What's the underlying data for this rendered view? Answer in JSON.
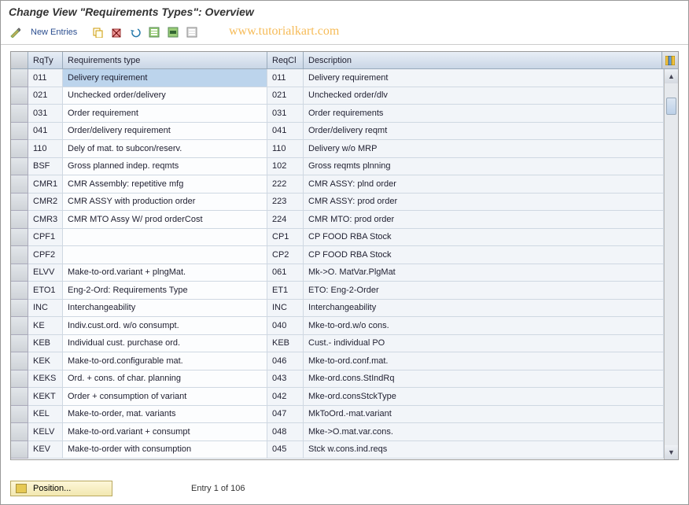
{
  "title": "Change View \"Requirements Types\": Overview",
  "toolbar": {
    "new_entries": "New Entries"
  },
  "watermark": "www.tutorialkart.com",
  "columns": {
    "rqty": "RqTy",
    "type": "Requirements type",
    "reqcl": "ReqCl",
    "desc": "Description"
  },
  "rows": [
    {
      "rqty": "011",
      "type": "Delivery requirement",
      "reqcl": "011",
      "desc": "Delivery requirement",
      "highlight": true
    },
    {
      "rqty": "021",
      "type": "Unchecked order/delivery",
      "reqcl": "021",
      "desc": "Unchecked order/dlv"
    },
    {
      "rqty": "031",
      "type": "Order requirement",
      "reqcl": "031",
      "desc": "Order requirements"
    },
    {
      "rqty": "041",
      "type": "Order/delivery requirement",
      "reqcl": "041",
      "desc": "Order/delivery reqmt"
    },
    {
      "rqty": "110",
      "type": "Dely of mat. to subcon/reserv.",
      "reqcl": "110",
      "desc": "Delivery w/o MRP"
    },
    {
      "rqty": "BSF",
      "type": "Gross planned indep. reqmts",
      "reqcl": "102",
      "desc": "Gross reqmts plnning"
    },
    {
      "rqty": "CMR1",
      "type": "CMR Assembly: repetitive mfg",
      "reqcl": "222",
      "desc": "CMR ASSY: plnd order"
    },
    {
      "rqty": "CMR2",
      "type": "CMR ASSY with production order",
      "reqcl": "223",
      "desc": "CMR ASSY: prod order"
    },
    {
      "rqty": "CMR3",
      "type": "CMR MTO Assy W/ prod orderCost",
      "reqcl": "224",
      "desc": "CMR MTO: prod order"
    },
    {
      "rqty": "CPF1",
      "type": "",
      "reqcl": "CP1",
      "desc": "CP FOOD RBA Stock"
    },
    {
      "rqty": "CPF2",
      "type": "",
      "reqcl": "CP2",
      "desc": "CP FOOD RBA Stock"
    },
    {
      "rqty": "ELVV",
      "type": "Make-to-ord.variant + plngMat.",
      "reqcl": "061",
      "desc": "Mk->O. MatVar.PlgMat"
    },
    {
      "rqty": "ETO1",
      "type": "Eng-2-Ord: Requirements Type",
      "reqcl": "ET1",
      "desc": "ETO: Eng-2-Order"
    },
    {
      "rqty": "INC",
      "type": "Interchangeability",
      "reqcl": "INC",
      "desc": "Interchangeability"
    },
    {
      "rqty": "KE",
      "type": "Indiv.cust.ord. w/o consumpt.",
      "reqcl": "040",
      "desc": "Mke-to-ord.w/o cons."
    },
    {
      "rqty": "KEB",
      "type": "Individual cust. purchase ord.",
      "reqcl": "KEB",
      "desc": "Cust.- individual PO"
    },
    {
      "rqty": "KEK",
      "type": "Make-to-ord.configurable mat.",
      "reqcl": "046",
      "desc": "Mke-to-ord.conf.mat."
    },
    {
      "rqty": "KEKS",
      "type": "Ord. + cons. of char. planning",
      "reqcl": "043",
      "desc": "Mke-ord.cons.StIndRq"
    },
    {
      "rqty": "KEKT",
      "type": "Order + consumption of variant",
      "reqcl": "042",
      "desc": "Mke-ord.consStckType"
    },
    {
      "rqty": "KEL",
      "type": "Make-to-order, mat. variants",
      "reqcl": "047",
      "desc": "MkToOrd.-mat.variant"
    },
    {
      "rqty": "KELV",
      "type": "Make-to-ord.variant + consumpt",
      "reqcl": "048",
      "desc": "Mke->O.mat.var.cons."
    },
    {
      "rqty": "KEV",
      "type": "Make-to-order with consumption",
      "reqcl": "045",
      "desc": "Stck w.cons.ind.reqs"
    }
  ],
  "footer": {
    "position": "Position...",
    "entry": "Entry 1 of 106"
  },
  "icons": {
    "pencil": "pencil-icon",
    "copy": "copy-icon",
    "delete": "delete-icon",
    "undo": "undo-icon",
    "select_all": "select-all-icon",
    "select_block": "select-block-icon",
    "deselect": "deselect-icon",
    "config": "config-columns-icon"
  },
  "colors": {
    "header_bg_top": "#e8eef6",
    "header_bg_bottom": "#c9d6e6",
    "highlight": "#bcd4ec",
    "watermark": "#f5b03b"
  }
}
